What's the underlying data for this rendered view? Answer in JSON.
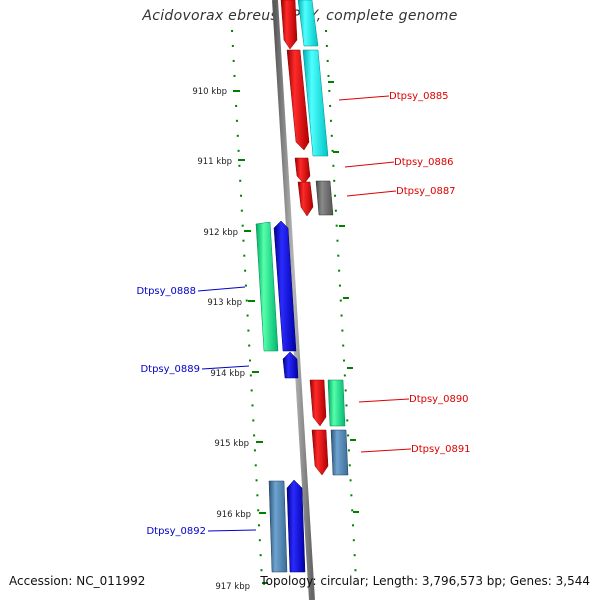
{
  "title": "Acidovorax ebreus TPSY, complete genome",
  "footer": {
    "accession": "Accession: NC_011992",
    "topology": "Topology: circular; Length: 3,796,573 bp; Genes: 3,544"
  },
  "colors": {
    "forward_strand": "#ff0000",
    "reverse_strand": "#0000ff",
    "cds_cyan": "#00ffff",
    "cds_teal": "#00ee88",
    "cds_steel": "#4682b4",
    "cds_gray": "#707070",
    "tick": "#008000",
    "backbone": "#808080",
    "forward_label": "#dd0000",
    "reverse_label": "#0000cc"
  },
  "scale": {
    "ticks": [
      {
        "kbp": 910,
        "label": "910 kbp"
      },
      {
        "kbp": 911,
        "label": "911 kbp"
      },
      {
        "kbp": 912,
        "label": "912 kbp"
      },
      {
        "kbp": 913,
        "label": "913 kbp"
      },
      {
        "kbp": 914,
        "label": "914 kbp"
      },
      {
        "kbp": 915,
        "label": "915 kbp"
      },
      {
        "kbp": 916,
        "label": "916 kbp"
      },
      {
        "kbp": 917,
        "label": "917 kbp"
      }
    ]
  },
  "genes": [
    {
      "locus": "Dtpsy_0885",
      "strand": "+",
      "start_kbp": 909.55,
      "end_kbp": 910.98,
      "feature_color": "cds_cyan",
      "labeled": true
    },
    {
      "locus": "Dtpsy_0886",
      "strand": "+",
      "start_kbp": 910.98,
      "end_kbp": 911.32,
      "feature_color": "cds_gray",
      "labeled": true
    },
    {
      "locus": "Dtpsy_0887",
      "strand": "+",
      "start_kbp": 911.32,
      "end_kbp": 911.8,
      "feature_color": "cds_gray",
      "labeled": true
    },
    {
      "locus": "Dtpsy_0888",
      "strand": "-",
      "start_kbp": 911.9,
      "end_kbp": 913.7,
      "feature_color": "cds_teal",
      "labeled": true
    },
    {
      "locus": "Dtpsy_0889",
      "strand": "-",
      "start_kbp": 913.7,
      "end_kbp": 914.1,
      "feature_color": "",
      "labeled": true
    },
    {
      "locus": "Dtpsy_0890",
      "strand": "+",
      "start_kbp": 914.1,
      "end_kbp": 914.8,
      "feature_color": "cds_teal",
      "labeled": true
    },
    {
      "locus": "Dtpsy_0891",
      "strand": "+",
      "start_kbp": 914.8,
      "end_kbp": 915.45,
      "feature_color": "cds_steel",
      "labeled": true
    },
    {
      "locus": "Dtpsy_0892",
      "strand": "-",
      "start_kbp": 915.8,
      "end_kbp": 917.4,
      "feature_color": "cds_steel",
      "labeled": true
    }
  ]
}
